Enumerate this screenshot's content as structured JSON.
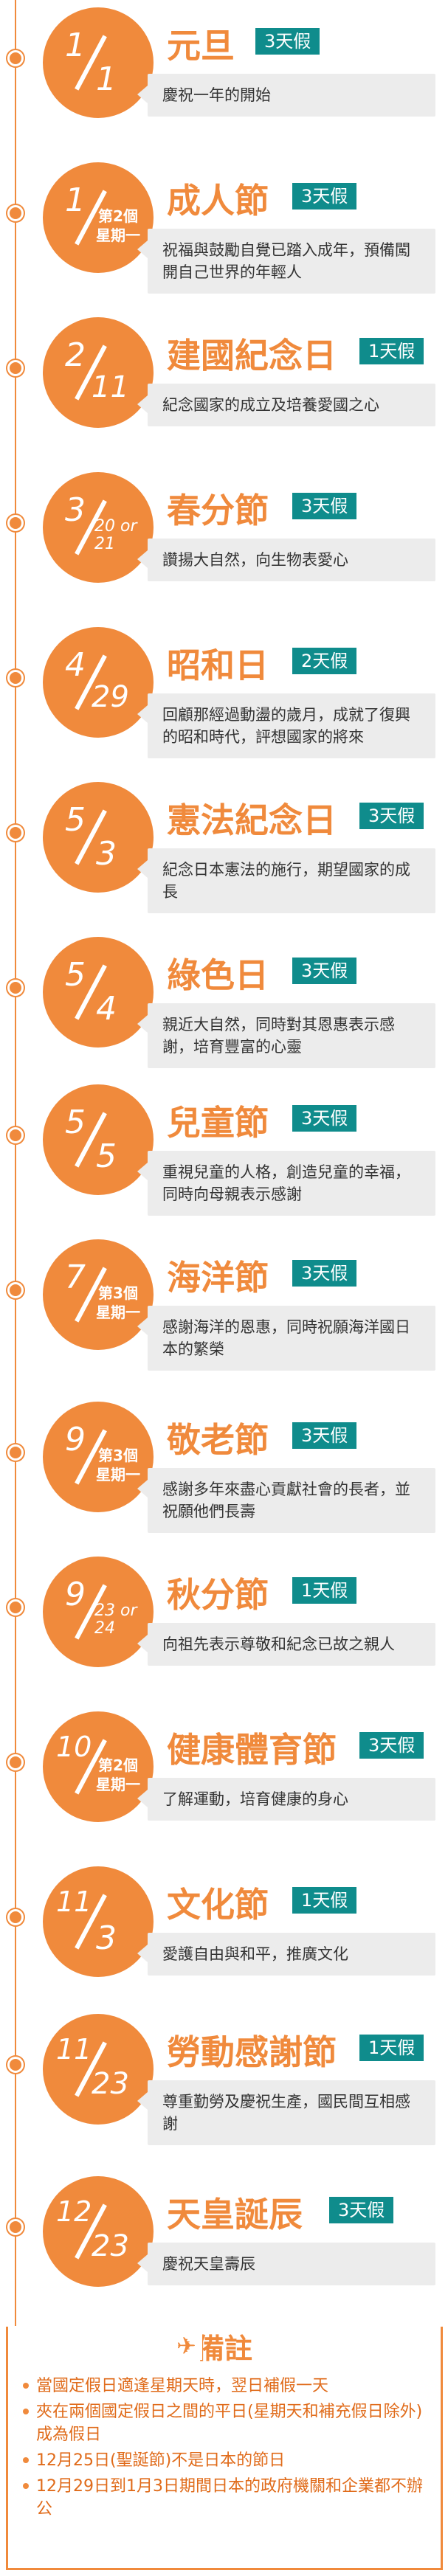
{
  "holidays": [
    {
      "month": "1",
      "day": "1",
      "name": "元旦",
      "badge": "3天假",
      "desc": "慶祝一年的開始"
    },
    {
      "month": "1",
      "day": "",
      "sub": "第2個\n星期一",
      "name": "成人節",
      "badge": "3天假",
      "desc": "祝福與鼓勵自覺已踏入成年，預備闖開自己世界的年輕人"
    },
    {
      "month": "2",
      "day": "11",
      "name": "建國紀念日",
      "badge": "1天假",
      "desc": "紀念國家的成立及培養愛國之心"
    },
    {
      "month": "3",
      "day": "20 or 21",
      "name": "春分節",
      "badge": "3天假",
      "desc": "讚揚大自然，向生物表愛心"
    },
    {
      "month": "4",
      "day": "29",
      "name": "昭和日",
      "badge": "2天假",
      "desc": "回顧那經過動盪的歲月，成就了復興的昭和時代，評想國家的將來"
    },
    {
      "month": "5",
      "day": "3",
      "name": "憲法紀念日",
      "badge": "3天假",
      "desc": "紀念日本憲法的施行，期望國家的成長"
    },
    {
      "month": "5",
      "day": "4",
      "name": "綠色日",
      "badge": "3天假",
      "desc": "親近大自然，同時對其恩惠表示感謝，培育豐富的心靈"
    },
    {
      "month": "5",
      "day": "5",
      "name": "兒童節",
      "badge": "3天假",
      "desc": "重視兒童的人格，創造兒童的幸福，同時向母親表示感謝"
    },
    {
      "month": "7",
      "day": "",
      "sub": "第3個\n星期一",
      "name": "海洋節",
      "badge": "3天假",
      "desc": "感謝海洋的恩惠，同時祝願海洋國日本的繁榮"
    },
    {
      "month": "9",
      "day": "",
      "sub": "第3個\n星期一",
      "name": "敬老節",
      "badge": "3天假",
      "desc": "感謝多年來盡心貢獻社會的長者，並祝願他們長壽"
    },
    {
      "month": "9",
      "day": "23 or 24",
      "name": "秋分節",
      "badge": "1天假",
      "desc": "向祖先表示尊敬和紀念已故之親人"
    },
    {
      "month": "10",
      "day": "",
      "sub": "第2個\n星期一",
      "name": "健康體育節",
      "badge": "3天假",
      "desc": "了解運動，培育健康的身心"
    },
    {
      "month": "11",
      "day": "3",
      "name": "文化節",
      "badge": "1天假",
      "desc": "愛護自由與和平，推廣文化"
    },
    {
      "month": "11",
      "day": "23",
      "name": "勞動感謝節",
      "badge": "1天假",
      "desc": "尊重勤勞及慶祝生產，國民間互相感謝"
    },
    {
      "month": "12",
      "day": "23",
      "name": "天皇誕辰",
      "badge": "3天假",
      "desc": "慶祝天皇壽辰"
    }
  ],
  "notes": {
    "title": "備註",
    "items": [
      "當國定假日適逢星期天時，翌日補假一天",
      "夾在兩個國定假日之間的平日(星期天和補充假日除外)成為假日",
      "12月25日(聖誕節)不是日本的節日",
      "12月29日到1月3日期間日本的政府機關和企業都不辦公"
    ]
  },
  "colors": {
    "accent": "#f08a3c",
    "badge": "#0f8c8c",
    "desc_bg": "#ececec"
  }
}
